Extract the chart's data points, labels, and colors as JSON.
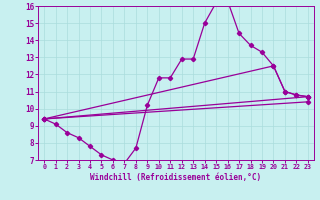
{
  "xlabel": "Windchill (Refroidissement éolien,°C)",
  "xlim": [
    -0.5,
    23.5
  ],
  "ylim": [
    7,
    16
  ],
  "xticks": [
    0,
    1,
    2,
    3,
    4,
    5,
    6,
    7,
    8,
    9,
    10,
    11,
    12,
    13,
    14,
    15,
    16,
    17,
    18,
    19,
    20,
    21,
    22,
    23
  ],
  "yticks": [
    7,
    8,
    9,
    10,
    11,
    12,
    13,
    14,
    15,
    16
  ],
  "background_color": "#c8f0f0",
  "line_color": "#990099",
  "grid_color": "#aadddd",
  "curve1_x": [
    0,
    1,
    2,
    3,
    4,
    5,
    6,
    7,
    8,
    9,
    10,
    11,
    12,
    13,
    14,
    15,
    16,
    17,
    18,
    19,
    20,
    21,
    22,
    23
  ],
  "curve1_y": [
    9.4,
    9.1,
    8.6,
    8.3,
    7.8,
    7.3,
    7.0,
    6.8,
    7.7,
    10.2,
    11.8,
    11.8,
    12.9,
    12.9,
    15.0,
    16.2,
    16.3,
    14.4,
    13.7,
    13.3,
    12.5,
    11.0,
    10.8,
    10.7
  ],
  "line2_x": [
    0,
    23
  ],
  "line2_y": [
    9.4,
    10.7
  ],
  "line3_x": [
    0,
    20,
    21,
    22,
    23
  ],
  "line3_y": [
    9.4,
    12.5,
    11.0,
    10.8,
    10.7
  ],
  "line4_x": [
    0,
    23
  ],
  "line4_y": [
    9.4,
    10.4
  ]
}
